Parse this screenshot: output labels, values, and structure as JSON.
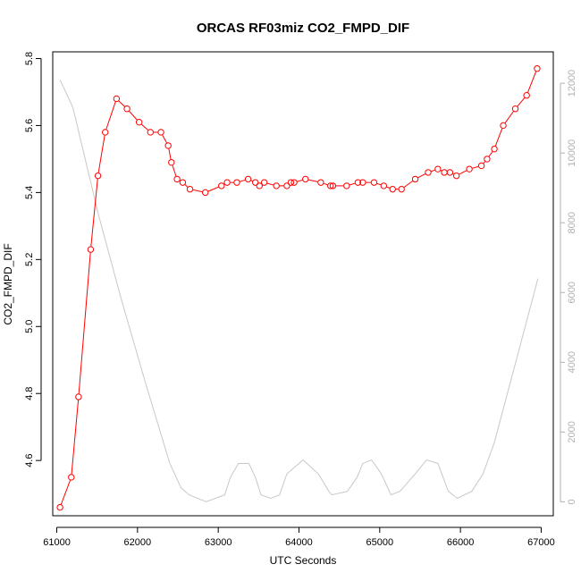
{
  "chart_data": {
    "type": "line",
    "title": "ORCAS RF03miz CO2_FMPD_DIF",
    "xlabel": "UTC Seconds",
    "ylabel": "CO2_FMPD_DIF",
    "xlim": [
      60950,
      67150
    ],
    "ylim": [
      4.435,
      5.82
    ],
    "y2lim": [
      -400,
      12900
    ],
    "xticks": [
      61000,
      62000,
      63000,
      64000,
      65000,
      66000,
      67000
    ],
    "yticks": [
      4.6,
      4.8,
      5.0,
      5.2,
      5.4,
      5.6,
      5.8
    ],
    "y2ticks": [
      0,
      2000,
      4000,
      6000,
      8000,
      10000,
      12000
    ],
    "grid": false,
    "legend": "none",
    "colors": {
      "series": "#ff0000",
      "secondary": "#c8c8c8",
      "axis": "#000000",
      "right_axis": "#b0b0b0"
    },
    "series": [
      {
        "axis": "left",
        "marker": "open-circle",
        "x": [
          61040,
          61180,
          61270,
          61420,
          61510,
          61600,
          61740,
          61870,
          62020,
          62160,
          62290,
          62380,
          62420,
          62490,
          62560,
          62650,
          62840,
          63040,
          63110,
          63230,
          63370,
          63460,
          63510,
          63570,
          63720,
          63850,
          63900,
          63940,
          64080,
          64270,
          64390,
          64420,
          64590,
          64730,
          64790,
          64930,
          65050,
          65160,
          65270,
          65440,
          65600,
          65720,
          65800,
          65870,
          65950,
          66110,
          66260,
          66330,
          66420,
          66530,
          66680,
          66820,
          66950
        ],
        "y": [
          4.46,
          4.55,
          4.79,
          5.23,
          5.45,
          5.58,
          5.68,
          5.65,
          5.61,
          5.58,
          5.58,
          5.54,
          5.49,
          5.44,
          5.43,
          5.41,
          5.4,
          5.42,
          5.43,
          5.43,
          5.44,
          5.43,
          5.42,
          5.43,
          5.42,
          5.42,
          5.43,
          5.43,
          5.44,
          5.43,
          5.42,
          5.42,
          5.42,
          5.43,
          5.43,
          5.43,
          5.42,
          5.41,
          5.41,
          5.44,
          5.46,
          5.47,
          5.46,
          5.46,
          5.45,
          5.47,
          5.48,
          5.5,
          5.53,
          5.6,
          5.65,
          5.69,
          5.77
        ]
      },
      {
        "axis": "right",
        "marker": "none",
        "x": [
          61040,
          61200,
          61520,
          61800,
          62100,
          62400,
          62540,
          62640,
          62850,
          63080,
          63150,
          63250,
          63380,
          63460,
          63530,
          63650,
          63760,
          63850,
          64050,
          64240,
          64370,
          64410,
          64600,
          64720,
          64790,
          64900,
          65020,
          65140,
          65250,
          65440,
          65580,
          65720,
          65850,
          65960,
          66140,
          66280,
          66420,
          66960
        ],
        "y": [
          12100,
          11300,
          8200,
          5800,
          3400,
          1100,
          400,
          200,
          0,
          200,
          700,
          1100,
          1100,
          700,
          200,
          100,
          200,
          800,
          1200,
          800,
          300,
          200,
          300,
          700,
          1100,
          1200,
          800,
          200,
          300,
          800,
          1200,
          1100,
          300,
          100,
          300,
          800,
          1700,
          6400
        ]
      }
    ]
  }
}
